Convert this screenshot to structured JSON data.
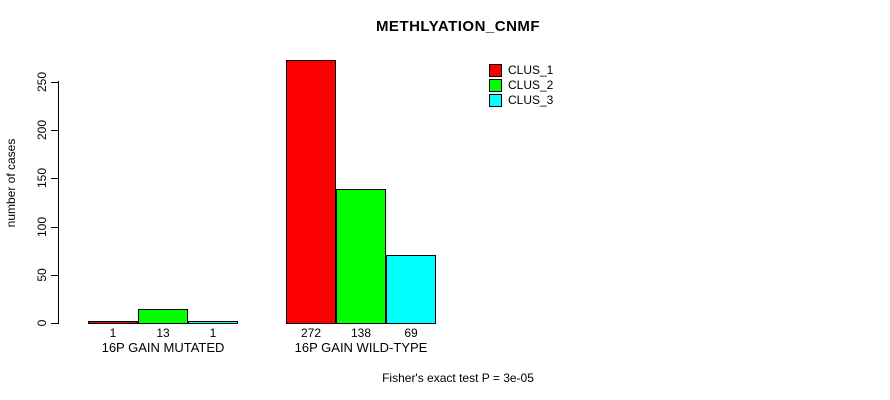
{
  "chart_data": {
    "type": "bar",
    "title": "METHLYATION_CNMF",
    "ylabel": "number of cases",
    "xlabel": "",
    "ylim": [
      0,
      250
    ],
    "yticks": [
      0,
      50,
      100,
      150,
      200,
      250
    ],
    "grid": false,
    "categories": [
      "16P GAIN MUTATED",
      "16P GAIN WILD-TYPE"
    ],
    "series": [
      {
        "name": "CLUS_1",
        "color": "#ff0000",
        "values": [
          1,
          272
        ]
      },
      {
        "name": "CLUS_2",
        "color": "#00ff00",
        "values": [
          13,
          138
        ]
      },
      {
        "name": "CLUS_3",
        "color": "#00ffff",
        "values": [
          1,
          69
        ]
      }
    ],
    "bar_value_labels": [
      [
        "1",
        "13",
        "1"
      ],
      [
        "272",
        "138",
        "69"
      ]
    ],
    "legend": {
      "position": "top-right",
      "entries": [
        "CLUS_1",
        "CLUS_2",
        "CLUS_3"
      ]
    },
    "annotation": "Fisher's exact test P = 3e-05"
  }
}
